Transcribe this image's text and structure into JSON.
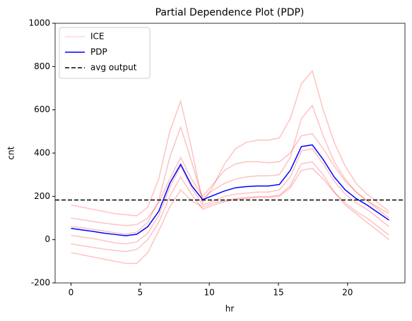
{
  "chart_data": {
    "type": "line",
    "title": "Partial Dependence Plot (PDP)",
    "xlabel": "hr",
    "ylabel": "cnt",
    "x": [
      0,
      0.79,
      1.59,
      2.38,
      3.17,
      3.97,
      4.76,
      5.55,
      6.34,
      7.14,
      7.93,
      8.72,
      9.52,
      10.31,
      11.1,
      11.9,
      12.69,
      13.48,
      14.28,
      15.07,
      15.86,
      16.66,
      17.45,
      18.24,
      19.03,
      19.83,
      20.62,
      21.41,
      22.21,
      23
    ],
    "ice": {
      "name": "ICE",
      "color": "red",
      "alpha": 0.15,
      "lines": [
        [
          160,
          150,
          140,
          130,
          120,
          115,
          110,
          150,
          280,
          500,
          640,
          420,
          170,
          250,
          350,
          420,
          450,
          460,
          460,
          470,
          560,
          720,
          780,
          600,
          450,
          340,
          260,
          210,
          170,
          130
        ],
        [
          -60,
          -70,
          -80,
          -90,
          -100,
          -110,
          -110,
          -60,
          40,
          150,
          230,
          180,
          150,
          170,
          180,
          190,
          195,
          200,
          200,
          205,
          250,
          350,
          360,
          300,
          220,
          160,
          120,
          80,
          40,
          0
        ],
        [
          20,
          12,
          5,
          -5,
          -15,
          -20,
          -10,
          30,
          110,
          240,
          340,
          240,
          160,
          180,
          200,
          210,
          215,
          220,
          220,
          230,
          290,
          410,
          420,
          350,
          270,
          210,
          170,
          140,
          100,
          60
        ],
        [
          100,
          92,
          84,
          76,
          70,
          65,
          70,
          100,
          170,
          280,
          380,
          280,
          200,
          260,
          320,
          350,
          360,
          360,
          355,
          360,
          400,
          480,
          490,
          420,
          340,
          270,
          220,
          180,
          150,
          120
        ],
        [
          -20,
          -28,
          -36,
          -44,
          -50,
          -55,
          -45,
          0,
          80,
          200,
          290,
          210,
          140,
          160,
          175,
          185,
          190,
          195,
          195,
          200,
          240,
          320,
          330,
          280,
          220,
          170,
          130,
          100,
          60,
          20
        ],
        [
          60,
          55,
          48,
          40,
          32,
          25,
          35,
          80,
          180,
          380,
          520,
          360,
          190,
          230,
          260,
          280,
          290,
          295,
          295,
          300,
          380,
          560,
          620,
          480,
          360,
          280,
          220,
          180,
          140,
          100
        ]
      ]
    },
    "series": [
      {
        "name": "PDP",
        "color": "blue",
        "values": [
          52,
          45,
          38,
          30,
          24,
          18,
          25,
          60,
          130,
          260,
          348,
          250,
          185,
          205,
          225,
          240,
          245,
          248,
          248,
          255,
          320,
          430,
          438,
          370,
          290,
          230,
          190,
          160,
          125,
          90
        ]
      }
    ],
    "hline": {
      "name": "avg output",
      "color": "black",
      "value": 183,
      "dash": true
    },
    "xlim": [
      -1.15,
      24.15
    ],
    "xticks": [
      0,
      5,
      10,
      15,
      20
    ],
    "ylim": [
      -200,
      1000
    ],
    "yticks": [
      -200,
      0,
      200,
      400,
      600,
      800,
      1000
    ],
    "legend": "upper left"
  }
}
